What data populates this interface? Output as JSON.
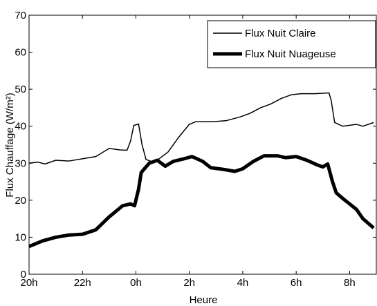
{
  "chart_data": {
    "type": "line",
    "xlabel": "Heure",
    "ylabel": "Flux Chauffage (W/m²)",
    "xlim": [
      0,
      13
    ],
    "ylim": [
      0,
      70
    ],
    "xticks": [
      {
        "value": 0,
        "label": "20h"
      },
      {
        "value": 2,
        "label": "22h"
      },
      {
        "value": 4,
        "label": "0h"
      },
      {
        "value": 6,
        "label": "2h"
      },
      {
        "value": 8,
        "label": "4h"
      },
      {
        "value": 10,
        "label": "6h"
      },
      {
        "value": 12,
        "label": "8h"
      }
    ],
    "yticks": [
      0,
      10,
      20,
      30,
      40,
      50,
      60,
      70
    ],
    "legend": "upper right",
    "grid": false,
    "series": [
      {
        "name": "Flux Nuit Claire",
        "color": "#000000",
        "width": 1.5,
        "x": [
          0,
          0.33,
          0.6,
          1.0,
          1.5,
          2.0,
          2.5,
          3.0,
          3.4,
          3.67,
          3.8,
          3.92,
          4.1,
          4.23,
          4.38,
          4.69,
          5.2,
          5.6,
          6.0,
          6.23,
          6.87,
          7.38,
          7.9,
          8.28,
          8.67,
          9.05,
          9.44,
          9.82,
          10.2,
          10.7,
          11.23,
          11.31,
          11.44,
          11.74,
          12.26,
          12.5,
          12.9
        ],
        "values": [
          30,
          30.3,
          29.8,
          30.8,
          30.6,
          31.2,
          31.8,
          34,
          33.6,
          33.5,
          36,
          40.2,
          40.6,
          35,
          31,
          30.2,
          33,
          37,
          40.5,
          41.2,
          41.2,
          41.5,
          42.5,
          43.5,
          45,
          46,
          47.5,
          48.5,
          48.8,
          48.8,
          49,
          47,
          41,
          40,
          40.5,
          40,
          41
        ]
      },
      {
        "name": "Flux Nuit Nuageuse",
        "color": "#000000",
        "width": 5,
        "x": [
          0,
          0.5,
          1.0,
          1.5,
          2.0,
          2.5,
          3.0,
          3.5,
          3.8,
          3.95,
          4.1,
          4.2,
          4.5,
          4.8,
          5.1,
          5.4,
          5.8,
          6.1,
          6.5,
          6.8,
          7.3,
          7.7,
          8.0,
          8.4,
          8.8,
          9.3,
          9.6,
          10.0,
          10.4,
          10.8,
          11.0,
          11.18,
          11.36,
          11.5,
          11.74,
          12.0,
          12.26,
          12.5,
          12.9
        ],
        "values": [
          7.5,
          9,
          10,
          10.6,
          10.8,
          12,
          15.5,
          18.5,
          19,
          18.5,
          23,
          27.5,
          30,
          30.8,
          29.2,
          30.5,
          31.2,
          31.8,
          30.5,
          28.8,
          28.3,
          27.8,
          28.5,
          30.5,
          32,
          32,
          31.5,
          31.8,
          30.8,
          29.5,
          29,
          29.8,
          25,
          22,
          20.5,
          19,
          17.5,
          15,
          12.5
        ]
      }
    ]
  }
}
